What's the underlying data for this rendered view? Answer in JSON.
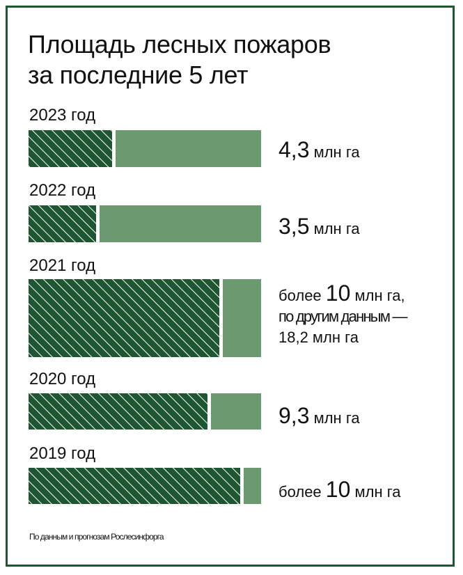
{
  "title_line1": "Площадь лесных пожаров",
  "title_line2": "за последние 5 лет",
  "footnote": "По данным и прогнозам Рослесинфорга",
  "colors": {
    "border": "#1e5631",
    "hatch_bg": "#1e5631",
    "hatch_line": "#ffffff",
    "solid": "#6b9a70"
  },
  "chart_data": {
    "type": "bar",
    "orientation": "horizontal",
    "unit": "млн га",
    "categories": [
      "2023 год",
      "2022 год",
      "2021 год",
      "2020 год",
      "2019 год"
    ],
    "series": [
      {
        "values": [
          4.3,
          3.5,
          10,
          9.3,
          10
        ]
      }
    ],
    "value_labels": [
      {
        "prefix": "",
        "number": "4,3",
        "unit": " млн га",
        "line2": "",
        "line3": ""
      },
      {
        "prefix": "",
        "number": "3,5",
        "unit": " млн га",
        "line2": "",
        "line3": ""
      },
      {
        "prefix": "более ",
        "number": "10",
        "unit": " млн га,",
        "line2": "по другим данным —",
        "line3": "18,2 млн га"
      },
      {
        "prefix": "",
        "number": "9,3",
        "unit": " млн га",
        "line2": "",
        "line3": ""
      },
      {
        "prefix": "более ",
        "number": "10",
        "unit": " млн га",
        "line2": "",
        "line3": ""
      }
    ],
    "hatched_fraction": [
      0.36,
      0.29,
      0.82,
      0.77,
      0.91
    ]
  }
}
